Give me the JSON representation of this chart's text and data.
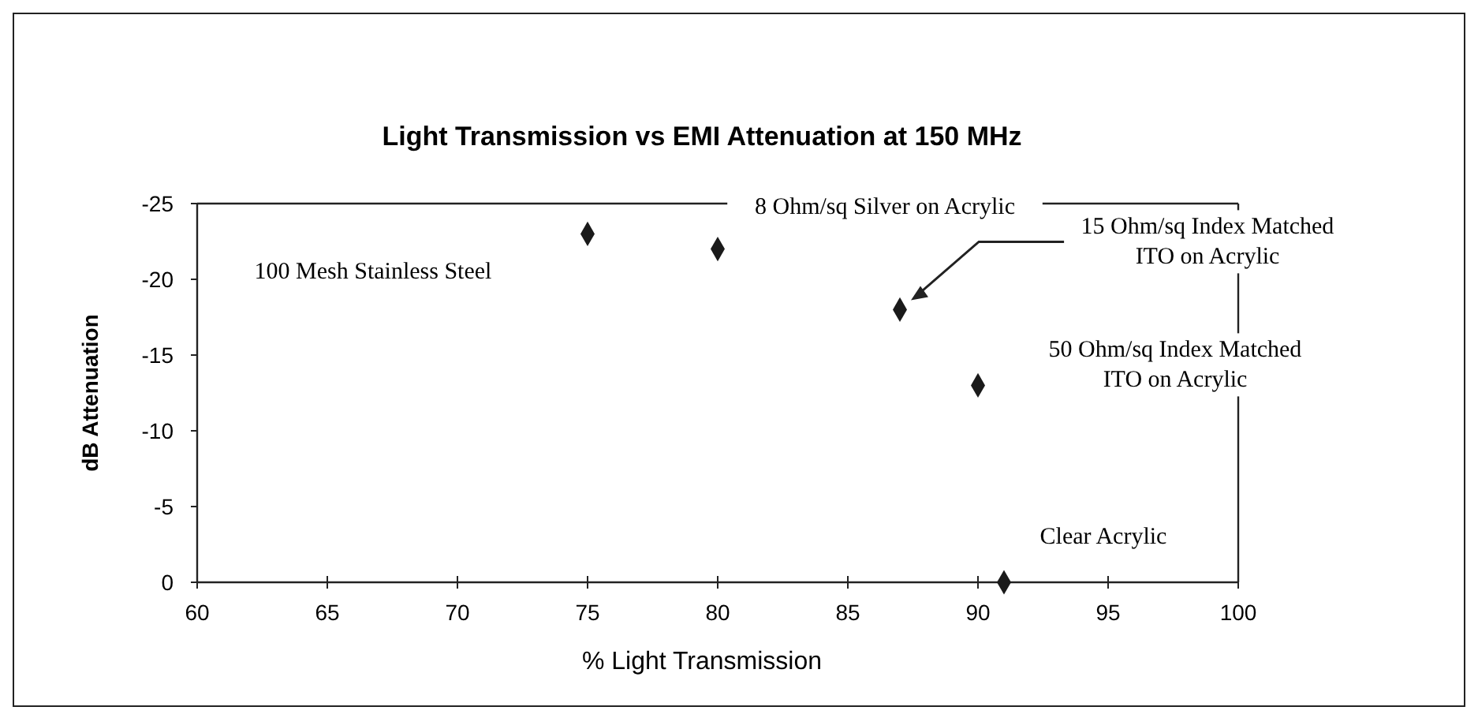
{
  "chart_data": {
    "type": "scatter",
    "title": "Light Transmission vs EMI Attenuation at 150 MHz",
    "xlabel": "% Light Transmission",
    "ylabel": "dB Attenuation",
    "x": [
      75,
      80,
      87,
      90,
      91
    ],
    "values": [
      -23,
      -22,
      -18,
      -13,
      0
    ],
    "color": "#1a1a1a",
    "marker": "diamond",
    "xlim": [
      60,
      100
    ],
    "xticks": [
      60,
      65,
      70,
      75,
      80,
      85,
      90,
      95,
      100
    ],
    "ylim": [
      0,
      -25
    ],
    "yticks": [
      -25,
      -20,
      -15,
      -10,
      -5,
      0
    ],
    "grid": false,
    "annotations": [
      "100 Mesh Stainless Steel",
      "8 Ohm/sq Silver on Acrylic",
      "15 Ohm/sq Index Matched\nITO on Acrylic",
      "50 Ohm/sq Index Matched\nITO on Acrylic",
      "Clear Acrylic"
    ]
  }
}
